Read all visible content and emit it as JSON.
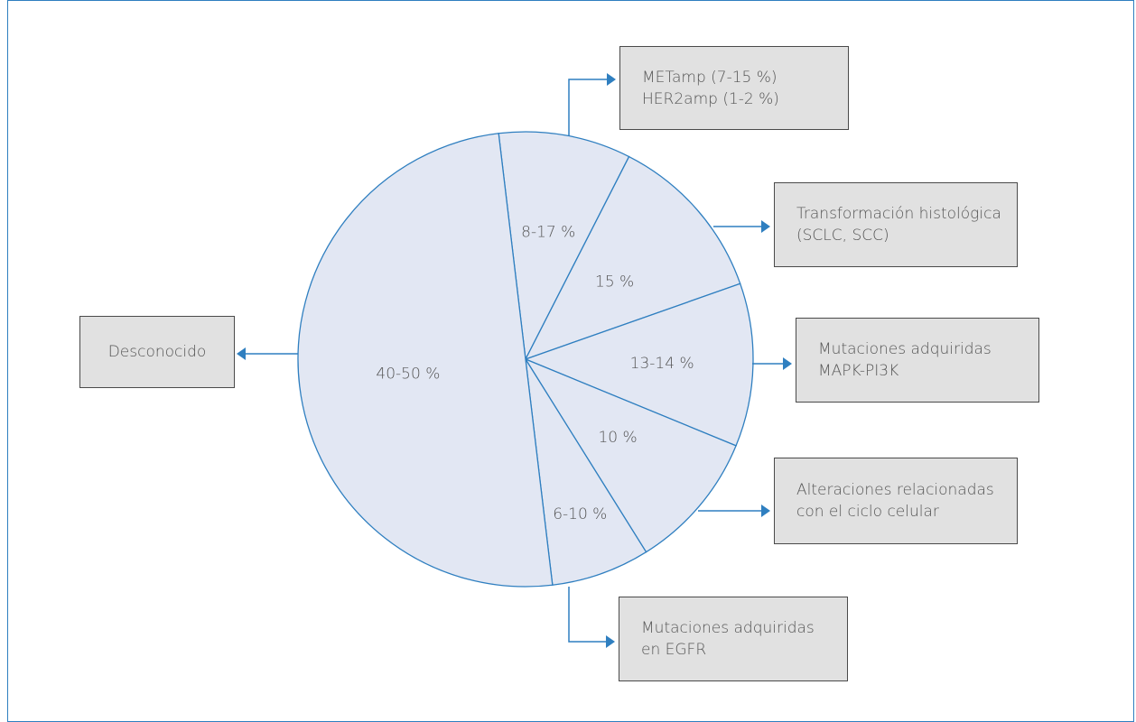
{
  "colors": {
    "accent": "#2f7fc0",
    "slice_fill": "#e2e7f3",
    "box_fill": "#e1e1e1",
    "text": "#555555"
  },
  "chart_data": {
    "type": "pie",
    "slices": [
      {
        "label": "8-17 %",
        "value": 9.4
      },
      {
        "label": "15 %",
        "value": 12.1
      },
      {
        "label": "13-14 %",
        "value": 11.6
      },
      {
        "label": "10 %",
        "value": 9.9
      },
      {
        "label": "6-10 %",
        "value": 7.0
      },
      {
        "label": "40-50 %",
        "value": 50.0
      }
    ]
  },
  "callouts": {
    "unknown": [
      "Desconocido"
    ],
    "amp": [
      "METamp (7-15 %)",
      "HER2amp (1-2 %)"
    ],
    "histo": [
      "Transformación histológica",
      "(SCLC, SCC)"
    ],
    "mapk": [
      "Mutaciones adquiridas",
      "MAPK-PI3K"
    ],
    "cycle": [
      "Alteraciones relacionadas",
      "con el ciclo celular"
    ],
    "egfr": [
      "Mutaciones adquiridas",
      "en EGFR"
    ]
  }
}
